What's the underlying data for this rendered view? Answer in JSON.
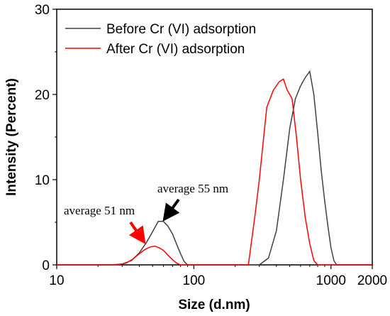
{
  "chart_data": {
    "type": "line",
    "title": "",
    "xlabel": "Size (d.nm)",
    "ylabel": "Intensity (Percent)",
    "x_scale": "log",
    "xlim": [
      10,
      2000
    ],
    "ylim": [
      0,
      30
    ],
    "x_ticks": [
      10,
      100,
      1000,
      2000
    ],
    "x_tick_labels": [
      "10",
      "100",
      "1000",
      "2000"
    ],
    "y_ticks": [
      0,
      10,
      20,
      30
    ],
    "y_tick_labels": [
      "0",
      "10",
      "20",
      "30"
    ],
    "grid": false,
    "legend_position": "top-left",
    "series": [
      {
        "name": "Before Cr (VI) adsorption",
        "color": "#404040",
        "x": [
          25,
          30,
          35,
          40,
          45,
          50,
          55,
          60,
          65,
          70,
          75,
          80,
          85,
          90,
          300,
          350,
          400,
          450,
          500,
          550,
          600,
          650,
          700,
          750,
          800,
          850,
          900,
          950,
          1000,
          1050,
          1100
        ],
        "y": [
          0,
          0.1,
          0.5,
          1.4,
          2.6,
          3.9,
          5.1,
          5.1,
          4.5,
          3.6,
          2.4,
          1.3,
          0.4,
          0,
          0,
          0.8,
          4,
          10,
          16,
          19.5,
          21,
          22,
          22.7,
          20,
          15.5,
          11,
          7.5,
          4.5,
          2,
          0.5,
          0
        ]
      },
      {
        "name": "After Cr (VI) adsorption",
        "color": "#ff0000",
        "x": [
          28,
          32,
          36,
          40,
          44,
          48,
          52,
          56,
          60,
          65,
          70,
          75,
          80,
          250,
          280,
          300,
          340,
          380,
          420,
          450,
          480,
          520,
          560,
          600,
          650,
          700,
          750,
          800
        ],
        "y": [
          0,
          0.2,
          0.7,
          1.3,
          1.8,
          2.1,
          2.2,
          2.0,
          1.7,
          1.1,
          0.6,
          0.2,
          0,
          0,
          6,
          10,
          18.5,
          20.5,
          21.5,
          21.8,
          20.5,
          19.5,
          15,
          10,
          5.5,
          2.5,
          0.5,
          0
        ]
      }
    ],
    "annotations": [
      {
        "text": "average 51 nm",
        "x": 51,
        "y": 2.2,
        "color": "#ff0000"
      },
      {
        "text": "average 55 nm",
        "x": 55,
        "y": 5.1,
        "color": "#000000"
      }
    ]
  }
}
